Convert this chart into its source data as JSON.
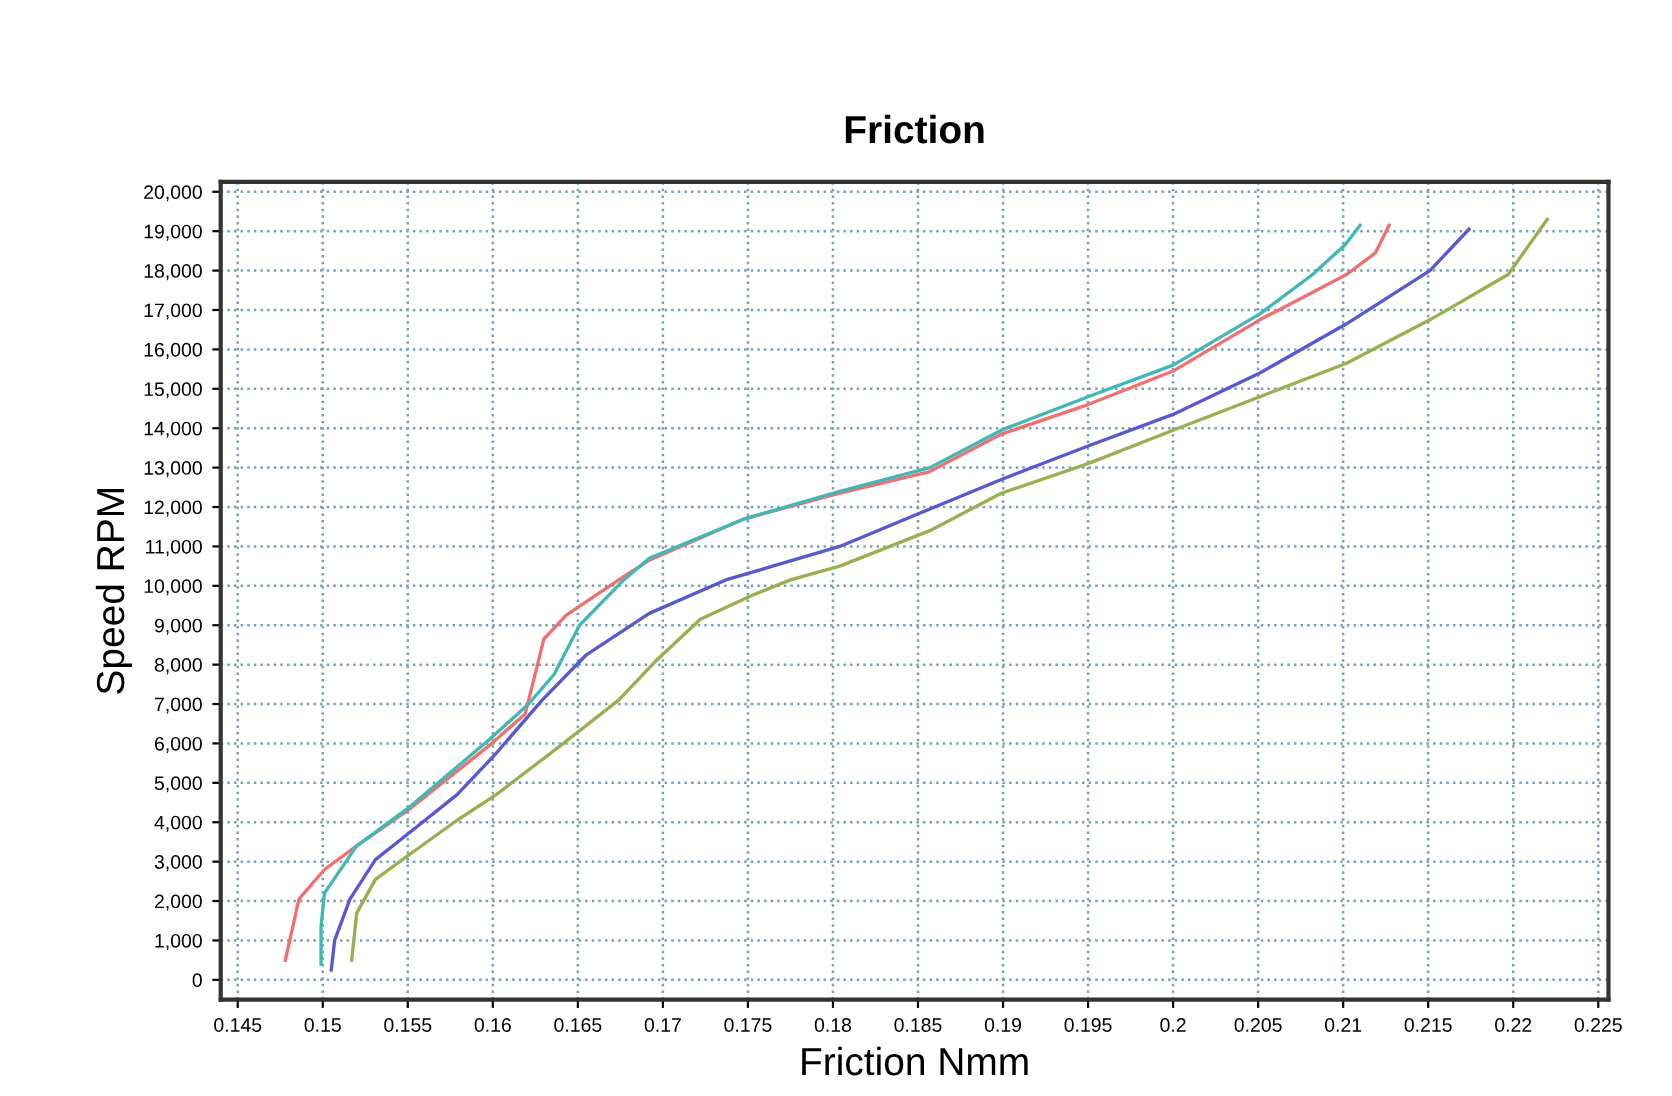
{
  "chart_data": {
    "type": "line",
    "title": "Friction",
    "xlabel": "Friction Nmm",
    "ylabel": "Speed RPM",
    "xlim": [
      0.144,
      0.2256
    ],
    "xticks": [
      0.145,
      0.15,
      0.155,
      0.16,
      0.165,
      0.17,
      0.175,
      0.18,
      0.185,
      0.19,
      0.195,
      0.2,
      0.205,
      0.21,
      0.215,
      0.22,
      0.225
    ],
    "ylim": [
      -500,
      20250
    ],
    "yticks": [
      0,
      {
        "value": 1000,
        "label": "1,000"
      },
      {
        "value": 2000,
        "label": "2,000"
      },
      {
        "value": 3000,
        "label": "3,000"
      },
      {
        "value": 4000,
        "label": "4,000"
      },
      {
        "value": 5000,
        "label": "5,000"
      },
      {
        "value": 6000,
        "label": "6,000"
      },
      {
        "value": 7000,
        "label": "7,000"
      },
      {
        "value": 8000,
        "label": "8,000"
      },
      {
        "value": 9000,
        "label": "9,000"
      },
      {
        "value": 10000,
        "label": "10,000"
      },
      {
        "value": 11000,
        "label": "11,000"
      },
      {
        "value": 12000,
        "label": "12,000"
      },
      {
        "value": 13000,
        "label": "13,000"
      },
      {
        "value": 14000,
        "label": "14,000"
      },
      {
        "value": 15000,
        "label": "15,000"
      },
      {
        "value": 16000,
        "label": "16,000"
      },
      {
        "value": 17000,
        "label": "17,000"
      },
      {
        "value": 18000,
        "label": "18,000"
      },
      {
        "value": 19000,
        "label": "19,000"
      },
      {
        "value": 20000,
        "label": "20,000"
      }
    ],
    "grid": true,
    "legend": false,
    "line_style": "solid",
    "marker": "none",
    "series": [
      {
        "color": "#f07070",
        "x": [
          0.1478,
          0.1486,
          0.1501,
          0.152,
          0.155,
          0.1598,
          0.1619,
          0.1624,
          0.163,
          0.1643,
          0.1674,
          0.1692,
          0.1748,
          0.1804,
          0.1857,
          0.1899,
          0.195,
          0.2,
          0.2051,
          0.2102,
          0.2119,
          0.2127
        ],
        "values": [
          500,
          2050,
          2800,
          3400,
          4300,
          5950,
          6750,
          7600,
          8650,
          9250,
          10150,
          10650,
          11700,
          12350,
          12900,
          13850,
          14600,
          15450,
          16750,
          17900,
          18450,
          19150
        ]
      },
      {
        "color": "#40b8b8",
        "x": [
          0.1499,
          0.1499,
          0.1501,
          0.152,
          0.155,
          0.1598,
          0.1621,
          0.1636,
          0.1651,
          0.1677,
          0.1692,
          0.1748,
          0.1804,
          0.1857,
          0.1899,
          0.195,
          0.2,
          0.2051,
          0.2082,
          0.2101,
          0.211
        ],
        "values": [
          400,
          1350,
          2200,
          3400,
          4350,
          6100,
          7000,
          7750,
          9000,
          10150,
          10700,
          11700,
          12400,
          13000,
          13950,
          14800,
          15600,
          16900,
          17900,
          18650,
          19150
        ]
      },
      {
        "color": "#5858d0",
        "x": [
          0.1505,
          0.1507,
          0.1516,
          0.1531,
          0.155,
          0.1579,
          0.1602,
          0.1629,
          0.1655,
          0.1692,
          0.1737,
          0.1804,
          0.1857,
          0.1899,
          0.195,
          0.2,
          0.2051,
          0.2102,
          0.2151,
          0.2174
        ],
        "values": [
          250,
          1000,
          2050,
          3050,
          3700,
          4700,
          5750,
          7100,
          8250,
          9300,
          10150,
          11000,
          11950,
          12700,
          13550,
          14350,
          15400,
          16650,
          18000,
          19050
        ]
      },
      {
        "color": "#98b050",
        "x": [
          0.1517,
          0.152,
          0.1531,
          0.155,
          0.1579,
          0.1602,
          0.164,
          0.1674,
          0.1696,
          0.1722,
          0.1752,
          0.1775,
          0.1804,
          0.1857,
          0.1899,
          0.195,
          0.2,
          0.2051,
          0.2102,
          0.2151,
          0.2197,
          0.222
        ],
        "values": [
          500,
          1700,
          2550,
          3150,
          4050,
          4700,
          5950,
          7100,
          8100,
          9150,
          9750,
          10150,
          10500,
          11400,
          12350,
          13100,
          13950,
          14800,
          15650,
          16750,
          17900,
          19300
        ]
      }
    ]
  }
}
